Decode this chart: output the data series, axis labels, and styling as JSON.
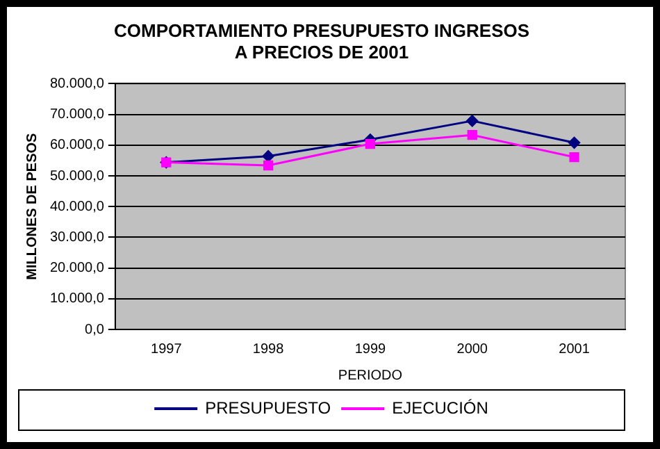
{
  "chart_data": {
    "type": "line",
    "title": "COMPORTAMIENTO PRESUPUESTO INGRESOS\nA PRECIOS DE 2001",
    "xlabel": "PERIODO",
    "ylabel": "MILLONES DE PESOS",
    "categories": [
      "1997",
      "1998",
      "1999",
      "2000",
      "2001"
    ],
    "series": [
      {
        "name": "PRESUPUESTO",
        "color": "#000080",
        "marker": "diamond",
        "values": [
          54400,
          56400,
          61800,
          67900,
          60800
        ]
      },
      {
        "name": "EJECUCIÓN",
        "color": "#ff00ff",
        "marker": "square",
        "values": [
          54400,
          53400,
          60400,
          63300,
          56100
        ]
      }
    ],
    "ylim": [
      0,
      80000
    ],
    "yticks": [
      {
        "value": 0,
        "label": "0,0"
      },
      {
        "value": 10000,
        "label": "10.000,0"
      },
      {
        "value": 20000,
        "label": "20.000,0"
      },
      {
        "value": 30000,
        "label": "30.000,0"
      },
      {
        "value": 40000,
        "label": "40.000,0"
      },
      {
        "value": 50000,
        "label": "50.000,0"
      },
      {
        "value": 60000,
        "label": "60.000,0"
      },
      {
        "value": 70000,
        "label": "70.000,0"
      },
      {
        "value": 80000,
        "label": "80.000,0"
      }
    ],
    "grid": "y",
    "legend": "bottom",
    "line_style": "solid"
  }
}
